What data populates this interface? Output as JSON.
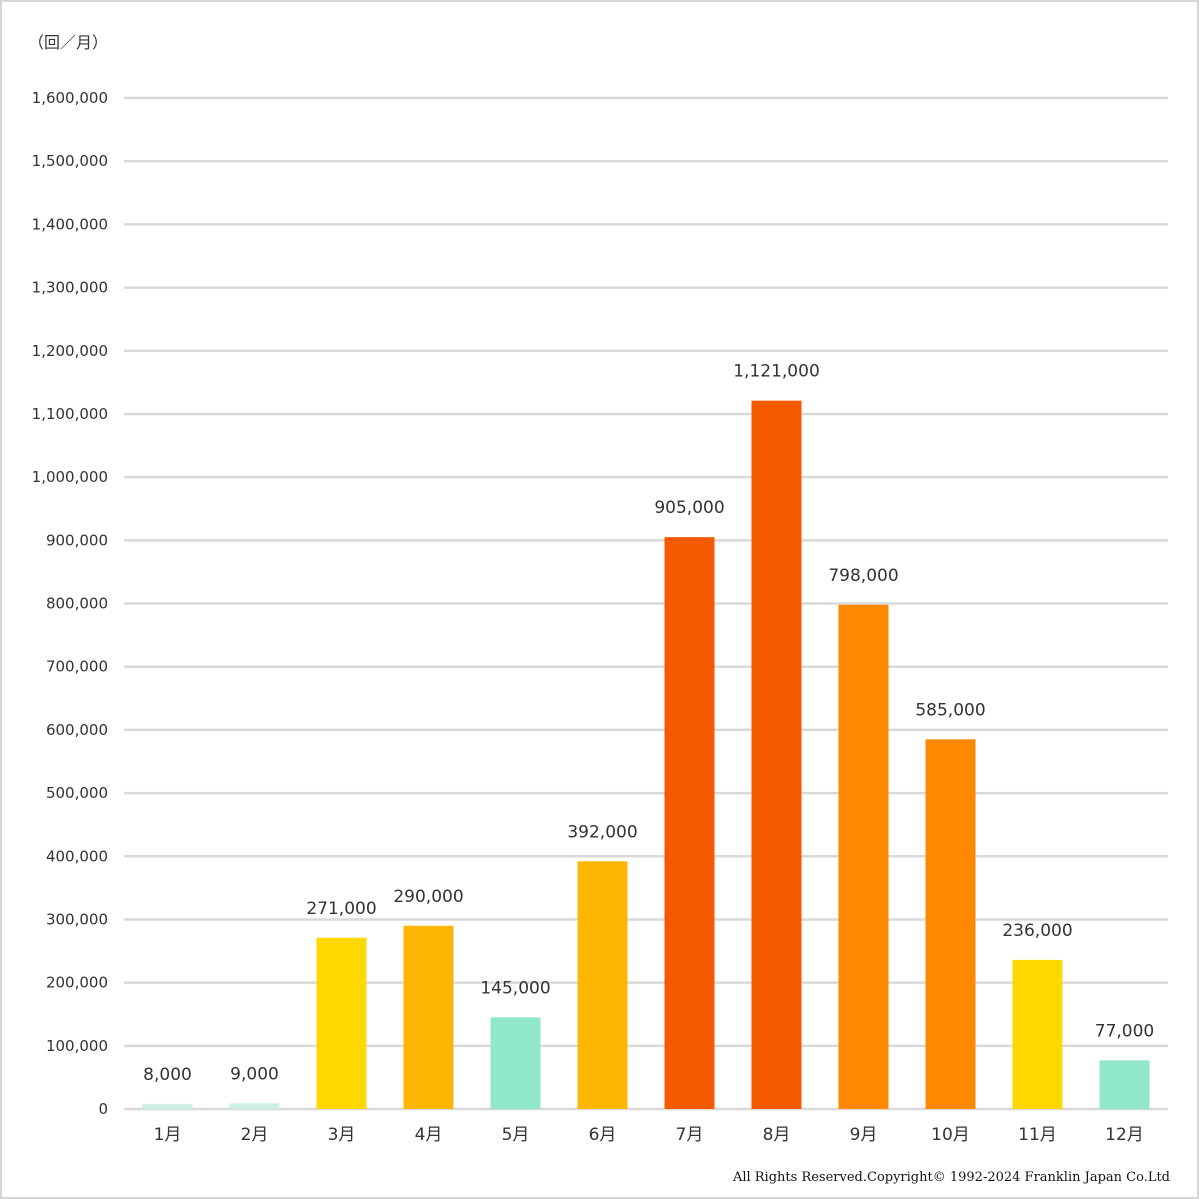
{
  "chart_data": {
    "type": "bar",
    "unit_label": "（回／月）",
    "categories": [
      "1月",
      "2月",
      "3月",
      "4月",
      "5月",
      "6月",
      "7月",
      "8月",
      "9月",
      "10月",
      "11月",
      "12月"
    ],
    "values": [
      8000,
      9000,
      271000,
      290000,
      145000,
      392000,
      905000,
      1121000,
      798000,
      585000,
      236000,
      77000
    ],
    "data_labels": [
      "8,000",
      "9,000",
      "271,000",
      "290,000",
      "145,000",
      "392,000",
      "905,000",
      "1,121,000",
      "798,000",
      "585,000",
      "236,000",
      "77,000"
    ],
    "bar_colors": [
      "#cdeee3",
      "#cdeee3",
      "#ffd800",
      "#ffb600",
      "#91e8c9",
      "#ffb600",
      "#f65a00",
      "#f65a00",
      "#ff8800",
      "#ff8800",
      "#ffd800",
      "#91e8c9"
    ],
    "ylim": [
      0,
      1600000
    ],
    "y_ticks": [
      0,
      100000,
      200000,
      300000,
      400000,
      500000,
      600000,
      700000,
      800000,
      900000,
      1000000,
      1100000,
      1200000,
      1300000,
      1400000,
      1500000,
      1600000
    ],
    "y_tick_labels": [
      "0",
      "100,000",
      "200,000",
      "300,000",
      "400,000",
      "500,000",
      "600,000",
      "700,000",
      "800,000",
      "900,000",
      "1,000,000",
      "1,100,000",
      "1,200,000",
      "1,300,000",
      "1,400,000",
      "1,500,000",
      "1,600,000"
    ],
    "grid": true,
    "grid_color": "#d9d9d9",
    "title": "",
    "xlabel": "",
    "ylabel": ""
  },
  "footer": {
    "copyright": "All  Rights  Reserved.Copyright©  1992-2024 Franklin  Japan  Co.Ltd"
  }
}
